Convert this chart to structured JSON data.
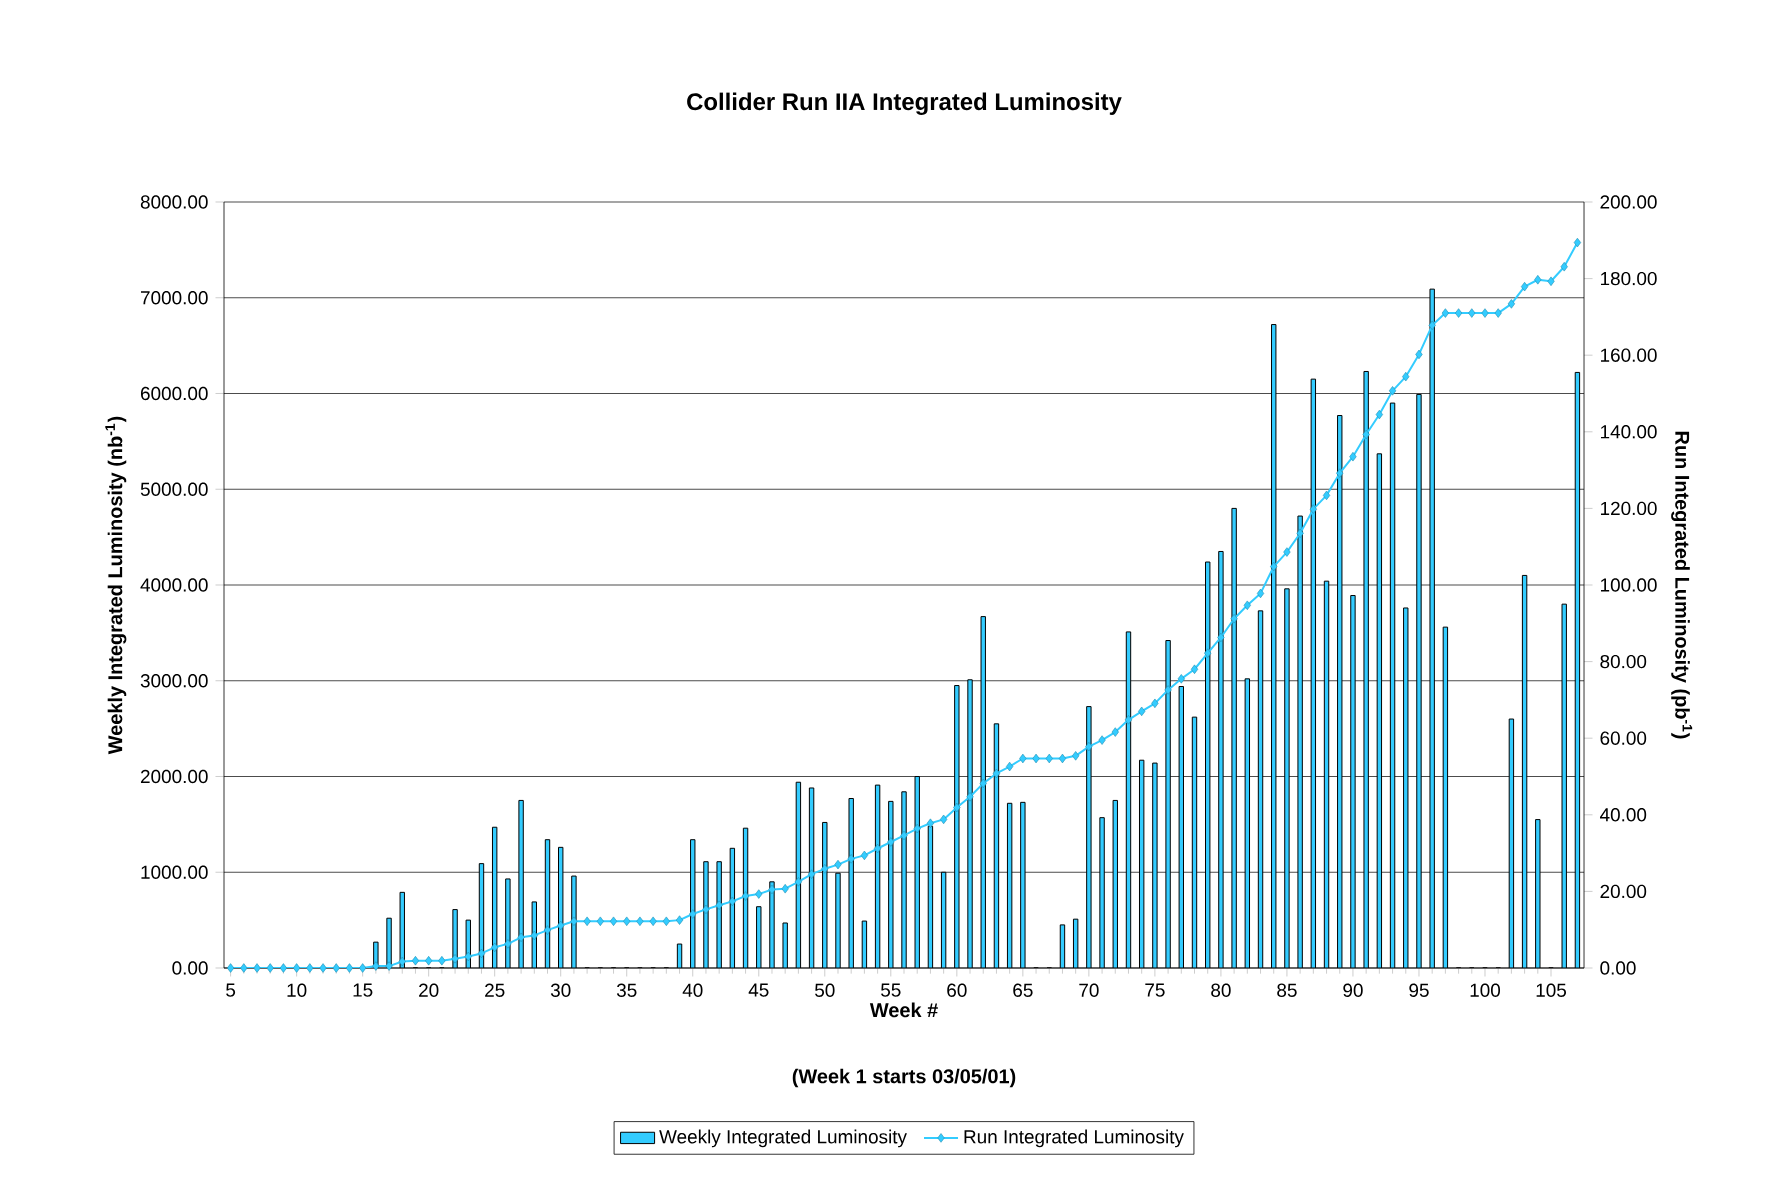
{
  "chart_data": {
    "type": "bar",
    "title": "Collider Run IIA Integrated Luminosity",
    "xlabel": "Week  #",
    "ylabel": "Weekly Integrated Luminosity (nb$^{-1}$)",
    "y2label": "Run Integrated Luminosity (pb$^{-1}$)",
    "annotations": [
      "(Week 1 starts 03/05/01)"
    ],
    "x": [
      5,
      6,
      7,
      8,
      9,
      10,
      11,
      12,
      13,
      14,
      15,
      16,
      17,
      18,
      19,
      20,
      21,
      22,
      23,
      24,
      25,
      26,
      27,
      28,
      29,
      30,
      31,
      32,
      33,
      34,
      35,
      36,
      37,
      38,
      39,
      40,
      41,
      42,
      43,
      44,
      45,
      46,
      47,
      48,
      49,
      50,
      51,
      52,
      53,
      54,
      55,
      56,
      57,
      58,
      59,
      60,
      61,
      62,
      63,
      64,
      65,
      66,
      67,
      68,
      69,
      70,
      71,
      72,
      73,
      74,
      75,
      76,
      77,
      78,
      79,
      80,
      81,
      82,
      83,
      84,
      85,
      86,
      87,
      88,
      89,
      90,
      91,
      92,
      93,
      94,
      95,
      96,
      97,
      98,
      99,
      100,
      101,
      102,
      103,
      104,
      105,
      106,
      107
    ],
    "series": [
      {
        "name": "Weekly Integrated Luminosity",
        "color": "#33ccff",
        "values": [
          0,
          0,
          0,
          0,
          0,
          0,
          0,
          0,
          0,
          0,
          0,
          270,
          520,
          790,
          0,
          0,
          0,
          610,
          500,
          1090,
          1470,
          930,
          1750,
          690,
          1340,
          1260,
          960,
          0,
          0,
          0,
          0,
          0,
          0,
          0,
          250,
          1340,
          1110,
          1110,
          1250,
          1460,
          640,
          900,
          470,
          1940,
          1880,
          1520,
          990,
          1770,
          490,
          1910,
          1740,
          1840,
          2000,
          1480,
          1000,
          2950,
          3010,
          3670,
          2550,
          1720,
          1730,
          0,
          0,
          450,
          510,
          2730,
          1570,
          1750,
          3510,
          2170,
          2140,
          3420,
          2940,
          2620,
          4240,
          4350,
          4800,
          3020,
          3730,
          6720,
          3960,
          4720,
          6150,
          4040,
          5770,
          3890,
          6230,
          5370,
          5900,
          3760,
          5990,
          7090,
          3560,
          0,
          0,
          0,
          0,
          2600,
          4100,
          1550,
          0,
          3800,
          6220
        ]
      },
      {
        "name": "Run Integrated Luminosity",
        "type": "line",
        "axis": "y2",
        "color": "#33ccff",
        "marker": "diamond",
        "values": [
          0,
          0,
          0,
          0,
          0,
          0,
          0,
          0,
          0,
          0,
          0,
          0.5,
          0.5,
          1.7,
          1.9,
          1.9,
          1.9,
          2.4,
          3.0,
          3.8,
          5.4,
          6.3,
          8.0,
          8.5,
          9.9,
          11.1,
          12.2,
          12.2,
          12.2,
          12.2,
          12.2,
          12.2,
          12.2,
          12.2,
          12.5,
          14.1,
          15.3,
          16.4,
          17.4,
          18.8,
          19.3,
          20.5,
          20.7,
          22.5,
          24.5,
          25.9,
          27.0,
          28.5,
          29.4,
          31.2,
          32.9,
          34.6,
          36.4,
          37.8,
          38.8,
          41.9,
          44.7,
          48.2,
          50.8,
          52.6,
          54.7,
          54.7,
          54.7,
          54.7,
          55.4,
          57.8,
          59.5,
          61.6,
          64.8,
          67.0,
          69.1,
          72.6,
          75.5,
          78.0,
          82.2,
          86.3,
          91.2,
          94.7,
          97.8,
          104.8,
          108.6,
          113.5,
          119.8,
          123.4,
          129.2,
          133.5,
          139.3,
          144.5,
          150.7,
          154.4,
          160.2,
          167.8,
          171.0,
          171.0,
          171.0,
          171.0,
          171.0,
          173.4,
          177.9,
          179.7,
          179.3,
          183.1,
          189.4
        ]
      }
    ],
    "xlim": [
      4.5,
      107.5
    ],
    "xticks": [
      5,
      10,
      15,
      20,
      25,
      30,
      35,
      40,
      45,
      50,
      55,
      60,
      65,
      70,
      75,
      80,
      85,
      90,
      95,
      100,
      105
    ],
    "ylim": [
      0,
      8000
    ],
    "yticks": [
      {
        "value": 0,
        "label": "0.00"
      },
      {
        "value": 1000,
        "label": "1000.00"
      },
      {
        "value": 2000,
        "label": "2000.00"
      },
      {
        "value": 3000,
        "label": "3000.00"
      },
      {
        "value": 4000,
        "label": "4000.00"
      },
      {
        "value": 5000,
        "label": "5000.00"
      },
      {
        "value": 6000,
        "label": "6000.00"
      },
      {
        "value": 7000,
        "label": "7000.00"
      },
      {
        "value": 8000,
        "label": "8000.00"
      }
    ],
    "y2lim": [
      0,
      200
    ],
    "y2ticks": [
      {
        "value": 0,
        "label": "0.00"
      },
      {
        "value": 20,
        "label": "20.00"
      },
      {
        "value": 40,
        "label": "40.00"
      },
      {
        "value": 60,
        "label": "60.00"
      },
      {
        "value": 80,
        "label": "80.00"
      },
      {
        "value": 100,
        "label": "100.00"
      },
      {
        "value": 120,
        "label": "120.00"
      },
      {
        "value": 140,
        "label": "140.00"
      },
      {
        "value": 160,
        "label": "160.00"
      },
      {
        "value": 180,
        "label": "180.00"
      },
      {
        "value": 200,
        "label": "200.00"
      }
    ],
    "grid": "y",
    "legend": "bottom"
  }
}
